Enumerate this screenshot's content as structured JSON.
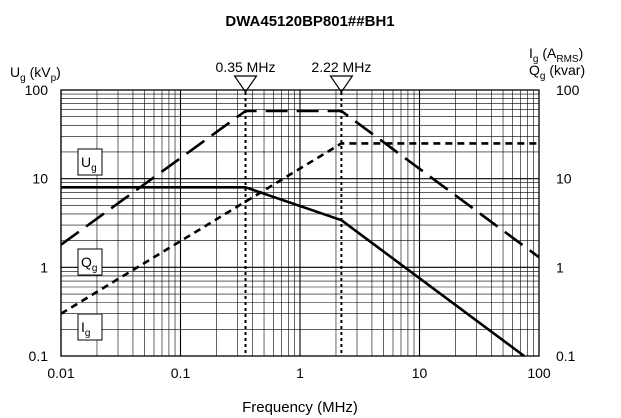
{
  "chart_data": {
    "type": "line",
    "title": "DWA45120BP801##BH1",
    "xlabel": "Frequency (MHz)",
    "x_scale": "log",
    "xlim": [
      0.01,
      100
    ],
    "x_ticks": [
      "0.01",
      "0.1",
      "1",
      "10",
      "100"
    ],
    "y_scale": "log",
    "ylim": [
      0.1,
      100
    ],
    "y_ticks": [
      "0.1",
      "1",
      "10",
      "100"
    ],
    "y_left_label": {
      "main": "U",
      "sub": "g",
      "unit_open": " (kV",
      "unit_sub": "p",
      "unit_close": ")"
    },
    "y_right_label_1": {
      "main": "I",
      "sub": "g",
      "unit_open": "  (A",
      "unit_sub": "RMS",
      "unit_close": ")"
    },
    "y_right_label_2": {
      "main": "Q",
      "sub": "g",
      "unit": " (kvar)"
    },
    "grid": true,
    "markers": [
      {
        "label": "0.35 MHz",
        "x": 0.35
      },
      {
        "label": "2.22 MHz",
        "x": 2.22
      }
    ],
    "series": [
      {
        "name": "Ug",
        "label_main": "U",
        "label_sub": "g",
        "style": "long-dash",
        "x": [
          0.01,
          0.35,
          2.22,
          100
        ],
        "y": [
          1.8,
          58,
          58,
          1.3
        ]
      },
      {
        "name": "Qg",
        "label_main": "Q",
        "label_sub": "g",
        "style": "short-dash",
        "x": [
          0.01,
          2.22,
          100
        ],
        "y": [
          0.3,
          25,
          25
        ]
      },
      {
        "name": "Ig",
        "label_main": "I",
        "label_sub": "g",
        "style": "solid",
        "x": [
          0.01,
          0.35,
          2.22,
          75
        ],
        "y": [
          8,
          8,
          3.4,
          0.1
        ]
      }
    ]
  }
}
